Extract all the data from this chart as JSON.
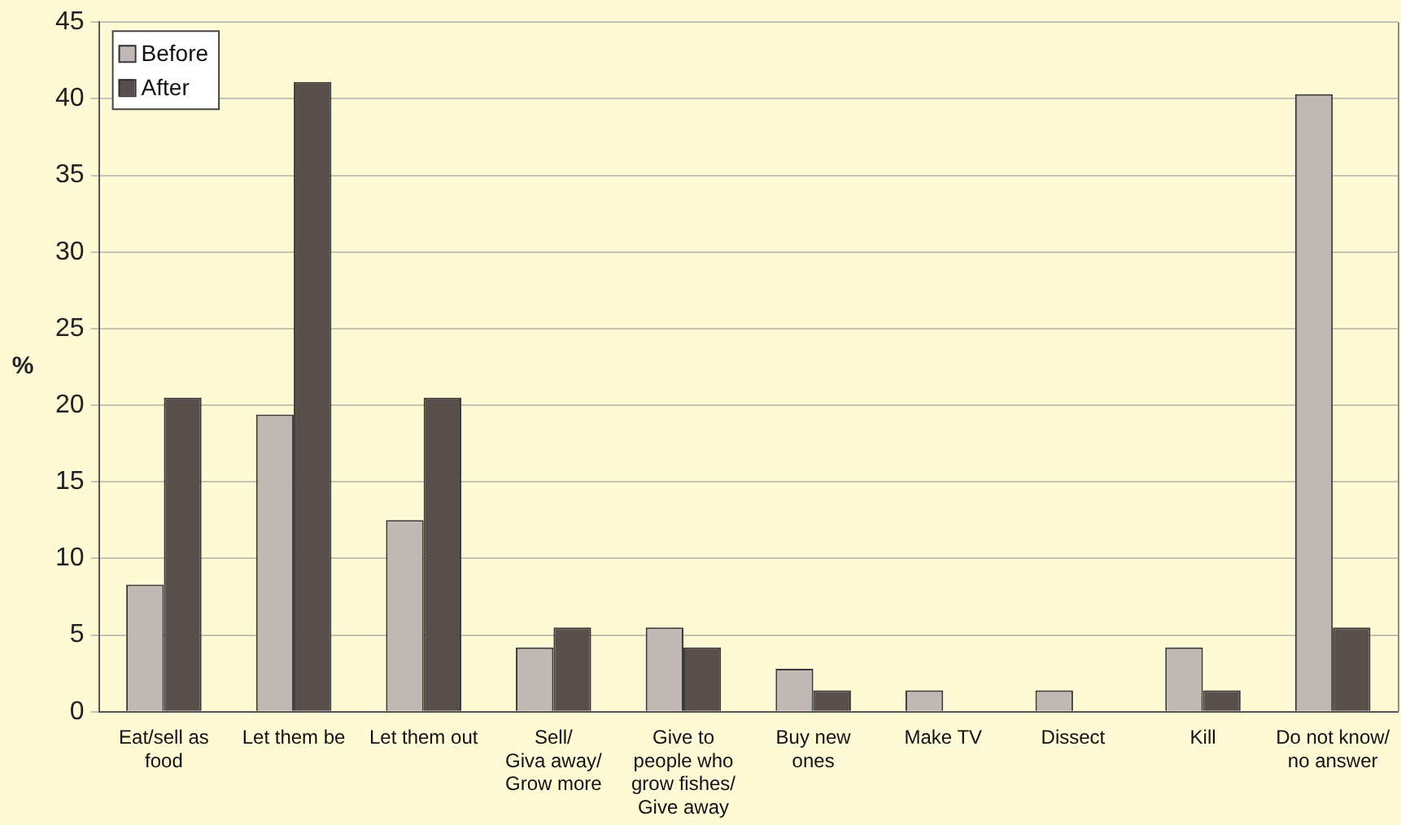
{
  "chart_data": {
    "type": "bar",
    "ylabel": "%",
    "categories": [
      "Eat/sell as\nfood",
      "Let them be",
      "Let them out",
      "Sell/\nGiva away/\nGrow more",
      "Give to\npeople who\ngrow fishes/\nGive away",
      "Buy new\nones",
      "Make TV",
      "Dissect",
      "Kill",
      "Do not know/\nno answer"
    ],
    "series": [
      {
        "name": "Before",
        "color": "#c0b8b5",
        "values": [
          8.3,
          19.4,
          12.5,
          4.2,
          5.5,
          2.8,
          1.4,
          1.4,
          4.2,
          40.3
        ]
      },
      {
        "name": "After",
        "color": "#584f4d",
        "values": [
          20.5,
          41.1,
          20.5,
          5.5,
          4.2,
          1.4,
          0,
          0,
          1.4,
          5.5
        ]
      }
    ],
    "ylim": [
      0,
      45
    ],
    "yticks": [
      0,
      5,
      10,
      15,
      20,
      25,
      30,
      35,
      40,
      45
    ],
    "grid": "y",
    "legend": "top left"
  }
}
